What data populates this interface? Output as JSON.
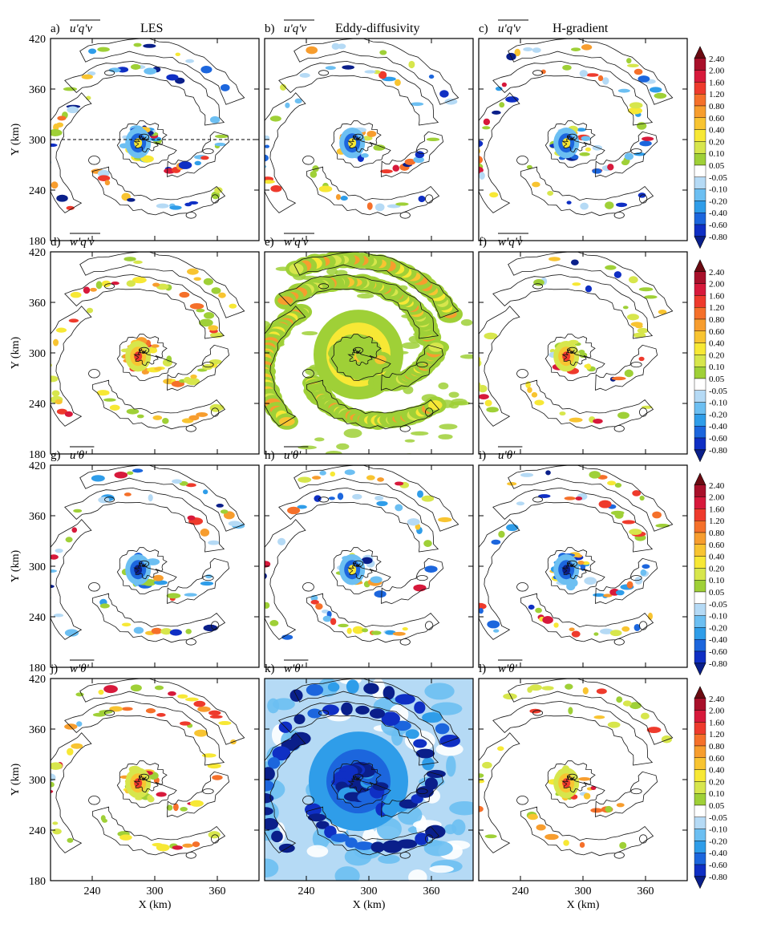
{
  "figure": {
    "column_titles": [
      "LES",
      "Eddy-diffusivity",
      "H-gradient"
    ],
    "x_label": "X (km)",
    "y_label": "Y (km)",
    "x_ticks": [
      240,
      300,
      360
    ],
    "y_ticks": [
      180,
      240,
      300,
      360,
      420
    ],
    "dashed_line_y": 300
  },
  "colorbar": {
    "levels": [
      "2.40",
      "2.00",
      "1.60",
      "1.20",
      "0.80",
      "0.60",
      "0.40",
      "0.20",
      "0.10",
      "0.05",
      "-0.05",
      "-0.10",
      "-0.20",
      "-0.40",
      "-0.60",
      "-0.80"
    ],
    "colors": [
      "#6b0b12",
      "#a8102a",
      "#d7193b",
      "#ee3a2c",
      "#f5702a",
      "#f79d2e",
      "#f8c431",
      "#f7e835",
      "#d7e64c",
      "#9fd037",
      "#ffffff",
      "#b5daf5",
      "#6cbff2",
      "#2f9de9",
      "#1c66dd",
      "#0f2fc4",
      "#0a1f8a"
    ]
  },
  "chart_data": [
    {
      "panel": "a",
      "label": "a)",
      "quantity": "u'q'v",
      "column": "LES",
      "type": "heatmap",
      "xlim": [
        200,
        400
      ],
      "ylim": [
        180,
        420
      ]
    },
    {
      "panel": "b",
      "label": "b)",
      "quantity": "u'q'v",
      "column": "Eddy-diffusivity",
      "type": "heatmap",
      "xlim": [
        200,
        400
      ],
      "ylim": [
        180,
        420
      ]
    },
    {
      "panel": "c",
      "label": "c)",
      "quantity": "u'q'v",
      "column": "H-gradient",
      "type": "heatmap",
      "xlim": [
        200,
        400
      ],
      "ylim": [
        180,
        420
      ]
    },
    {
      "panel": "d",
      "label": "d)",
      "quantity": "w'q'v",
      "column": "LES",
      "type": "heatmap",
      "xlim": [
        200,
        400
      ],
      "ylim": [
        180,
        420
      ]
    },
    {
      "panel": "e",
      "label": "e)",
      "quantity": "w'q'v",
      "column": "Eddy-diffusivity",
      "type": "heatmap",
      "xlim": [
        200,
        400
      ],
      "ylim": [
        180,
        420
      ]
    },
    {
      "panel": "f",
      "label": "f)",
      "quantity": "w'q'v",
      "column": "H-gradient",
      "type": "heatmap",
      "xlim": [
        200,
        400
      ],
      "ylim": [
        180,
        420
      ]
    },
    {
      "panel": "g",
      "label": "g)",
      "quantity": "u'θ'",
      "column": "LES",
      "type": "heatmap",
      "xlim": [
        200,
        400
      ],
      "ylim": [
        180,
        420
      ]
    },
    {
      "panel": "h",
      "label": "h)",
      "quantity": "u'θ'",
      "column": "Eddy-diffusivity",
      "type": "heatmap",
      "xlim": [
        200,
        400
      ],
      "ylim": [
        180,
        420
      ]
    },
    {
      "panel": "i",
      "label": "i)",
      "quantity": "u'θ'",
      "column": "H-gradient",
      "type": "heatmap",
      "xlim": [
        200,
        400
      ],
      "ylim": [
        180,
        420
      ]
    },
    {
      "panel": "j",
      "label": "j)",
      "quantity": "w'θ'",
      "column": "LES",
      "type": "heatmap",
      "xlim": [
        200,
        400
      ],
      "ylim": [
        180,
        420
      ]
    },
    {
      "panel": "k",
      "label": "k)",
      "quantity": "w'θ'",
      "column": "Eddy-diffusivity",
      "type": "heatmap",
      "xlim": [
        200,
        400
      ],
      "ylim": [
        180,
        420
      ]
    },
    {
      "panel": "l",
      "label": "l)",
      "quantity": "w'θ'",
      "column": "H-gradient",
      "type": "heatmap",
      "xlim": [
        200,
        400
      ],
      "ylim": [
        180,
        420
      ]
    }
  ]
}
